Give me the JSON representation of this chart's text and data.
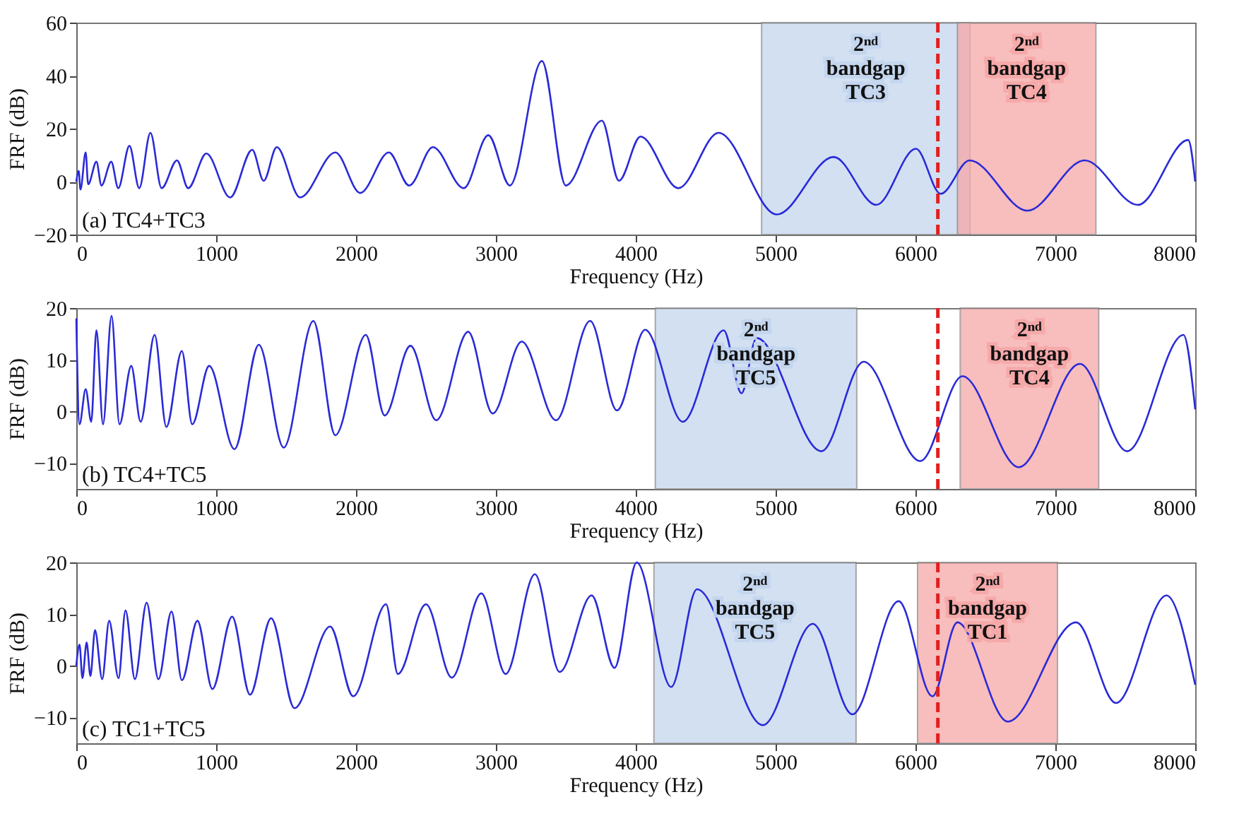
{
  "chart_data": [
    {
      "type": "line",
      "xlabel": "Frequency (Hz)",
      "ylabel": "FRF (dB)",
      "xlim": [
        0,
        8000
      ],
      "ylim": [
        -20,
        60
      ],
      "xticks": [
        0,
        1000,
        2000,
        3000,
        4000,
        5000,
        6000,
        7000,
        8000
      ],
      "yticks": [
        -20,
        0,
        20,
        40,
        60
      ],
      "grid": false,
      "x": [
        0,
        17,
        30,
        67,
        85,
        144,
        180,
        250,
        300,
        380,
        450,
        530,
        610,
        720,
        800,
        930,
        1100,
        1258,
        1340,
        1433,
        1600,
        1852,
        2030,
        2235,
        2380,
        2550,
        2770,
        2946,
        3100,
        3329,
        3500,
        3758,
        3880,
        4034,
        4305,
        4592,
        5008,
        5415,
        5720,
        6003,
        6180,
        6387,
        6800,
        7210,
        7590,
        7950,
        8000
      ],
      "series": [
        {
          "color": "#2a2ad8",
          "values": [
            0,
            4,
            -3,
            11,
            -1,
            7.5,
            -1.5,
            7.5,
            -2.5,
            13.5,
            -2.5,
            18.4,
            -2.5,
            8,
            -2.5,
            10.6,
            -6,
            12,
            0.3,
            13,
            -6,
            11,
            -4.3,
            11,
            -1.5,
            13,
            -2.5,
            17.5,
            -1.5,
            45.5,
            -1.5,
            23,
            0.3,
            17,
            -2.5,
            18.4,
            -12.4,
            9.3,
            -8.8,
            12.4,
            -4.6,
            8,
            -11,
            8,
            -8.8,
            15.7,
            0
          ]
        }
      ],
      "bands": [
        {
          "axis": "x",
          "from": 4900,
          "to": 6390,
          "label": "2ⁿᵈ bandgap TC3",
          "color": "#c3d6ee"
        },
        {
          "axis": "x",
          "from": 6300,
          "to": 7290,
          "label": "2ⁿᵈ bandgap TC4",
          "color": "#f6a7a7"
        }
      ],
      "ref_lines": [
        {
          "axis": "x",
          "value": 6160,
          "color": "#e02020",
          "line_style": "dashed"
        }
      ],
      "annotations": [
        "(a) TC4+TC3"
      ]
    },
    {
      "type": "line",
      "xlabel": "Frequency (Hz)",
      "ylabel": "FRF (dB)",
      "xlim": [
        0,
        8000
      ],
      "ylim": [
        -15,
        20
      ],
      "xticks": [
        0,
        1000,
        2000,
        3000,
        4000,
        5000,
        6000,
        7000,
        8000
      ],
      "yticks": [
        -10,
        0,
        10,
        20
      ],
      "grid": false,
      "x": [
        0,
        23,
        67,
        107,
        144,
        191,
        252,
        309,
        393,
        460,
        560,
        644,
        755,
        829,
        950,
        1131,
        1305,
        1483,
        1695,
        1852,
        2070,
        2205,
        2389,
        2574,
        2802,
        2977,
        3185,
        3430,
        3674,
        3866,
        4067,
        4336,
        4629,
        4756,
        4864,
        5328,
        5630,
        6034,
        6336,
        6739,
        7176,
        7513,
        7916,
        8000
      ],
      "series": [
        {
          "color": "#2a2ad8",
          "values": [
            18,
            -2.5,
            4.3,
            -2,
            15.7,
            -2.5,
            18.5,
            -2.5,
            8.8,
            -2,
            14.8,
            -3,
            11.7,
            -2.5,
            8.8,
            -7.3,
            12.9,
            -7,
            17.5,
            -4.6,
            14.8,
            -0.8,
            12.7,
            -1.7,
            15.4,
            -0.4,
            13.5,
            -1.7,
            17.5,
            0.2,
            15.8,
            -2,
            15.7,
            3.5,
            14.2,
            -7.7,
            9.6,
            -9.6,
            6.8,
            -10.8,
            9.2,
            -7.7,
            14.8,
            0.4
          ]
        }
      ],
      "bands": [
        {
          "axis": "x",
          "from": 4140,
          "to": 5580,
          "label": "2ⁿᵈ bandgap TC5",
          "color": "#c3d6ee"
        },
        {
          "axis": "x",
          "from": 6320,
          "to": 7310,
          "label": "2ⁿᵈ bandgap TC4",
          "color": "#f6a7a7"
        }
      ],
      "ref_lines": [
        {
          "axis": "x",
          "value": 6160,
          "color": "#e02020",
          "line_style": "dashed"
        }
      ],
      "annotations": [
        "(b) TC4+TC5"
      ]
    },
    {
      "type": "line",
      "xlabel": "Frequency (Hz)",
      "ylabel": "FRF (dB)",
      "xlim": [
        0,
        8000
      ],
      "ylim": [
        -15,
        20
      ],
      "xticks": [
        0,
        1000,
        2000,
        3000,
        4000,
        5000,
        6000,
        7000,
        8000
      ],
      "yticks": [
        -10,
        0,
        10,
        20
      ],
      "grid": false,
      "x": [
        0,
        23,
        44,
        74,
        101,
        134,
        185,
        235,
        302,
        352,
        419,
        503,
        587,
        681,
        755,
        866,
        973,
        1114,
        1242,
        1393,
        1560,
        1815,
        1980,
        2215,
        2299,
        2500,
        2685,
        2896,
        3070,
        3279,
        3456,
        3685,
        3848,
        4007,
        4253,
        4438,
        4909,
        5266,
        5549,
        5879,
        6121,
        6300,
        6660,
        7148,
        7434,
        7795,
        8000
      ],
      "series": [
        {
          "color": "#2a2ad8",
          "values": [
            0,
            4.1,
            -2.4,
            4.5,
            -2,
            6.9,
            -2.6,
            8.7,
            -2.4,
            10.7,
            -2.6,
            12.2,
            -2.6,
            10.5,
            -2.8,
            8.7,
            -4.5,
            9.5,
            -5.6,
            9.2,
            -8.2,
            7.6,
            -5.9,
            11.9,
            -1.6,
            11.9,
            -2.3,
            14,
            -1.6,
            17.7,
            -1.2,
            13.6,
            -0.4,
            20,
            -4.1,
            14.8,
            -11.5,
            8.1,
            -9.4,
            12.5,
            -5.9,
            8.4,
            -10.8,
            8.4,
            -7.2,
            13.6,
            -3.7
          ]
        }
      ],
      "bands": [
        {
          "axis": "x",
          "from": 4130,
          "to": 5575,
          "label": "2ⁿᵈ bandgap TC5",
          "color": "#c3d6ee"
        },
        {
          "axis": "x",
          "from": 6015,
          "to": 7015,
          "label": "2ⁿᵈ bandgap TC1",
          "color": "#f6a7a7"
        }
      ],
      "ref_lines": [
        {
          "axis": "x",
          "value": 6160,
          "color": "#e02020",
          "line_style": "dashed"
        }
      ],
      "annotations": [
        "(c) TC1+TC5"
      ]
    }
  ]
}
